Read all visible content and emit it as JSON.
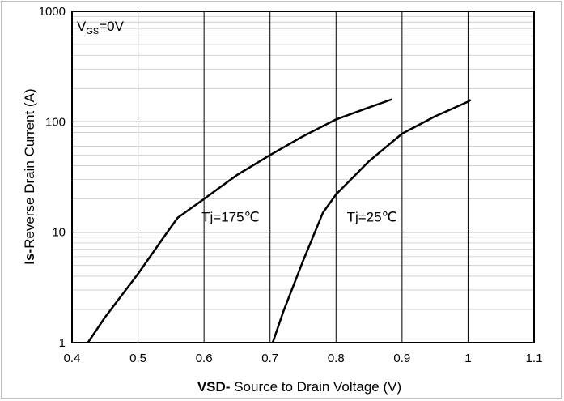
{
  "chart_data": {
    "type": "line",
    "title": "",
    "xlabel_bold": "VSD-",
    "xlabel_rest": " Source to Drain Voltage (V)",
    "ylabel_bold": "Is-",
    "ylabel_rest": "Reverse  Drain Current  (A)",
    "x_scale": "linear",
    "y_scale": "log",
    "xlim": [
      0.4,
      1.1
    ],
    "ylim": [
      1,
      1000
    ],
    "x_ticks": [
      0.4,
      0.5,
      0.6,
      0.7,
      0.8,
      0.9,
      1.0,
      1.1
    ],
    "x_tick_labels": [
      "0.4",
      "0.5",
      "0.6",
      "0.7",
      "0.8",
      "0.9",
      "1",
      "1.1"
    ],
    "y_ticks": [
      1,
      10,
      100,
      1000
    ],
    "y_tick_labels": [
      "1",
      "10",
      "100",
      "1000"
    ],
    "grid": true,
    "condition_label_main": "V",
    "condition_label_sub": "GS",
    "condition_label_tail": "=0V",
    "series": [
      {
        "name": "Tj=175℃",
        "color": "#000000",
        "x": [
          0.424,
          0.45,
          0.5,
          0.54,
          0.56,
          0.6,
          0.65,
          0.7,
          0.75,
          0.8,
          0.85,
          0.885
        ],
        "y": [
          1,
          1.7,
          4.2,
          9.2,
          13.5,
          20,
          33,
          50,
          74,
          105,
          135,
          160
        ]
      },
      {
        "name": "Tj=25℃",
        "color": "#000000",
        "x": [
          0.704,
          0.72,
          0.75,
          0.78,
          0.8,
          0.85,
          0.9,
          0.95,
          1.0,
          1.004
        ],
        "y": [
          1,
          1.9,
          5.5,
          15,
          22,
          44,
          78,
          112,
          152,
          158
        ]
      }
    ]
  }
}
